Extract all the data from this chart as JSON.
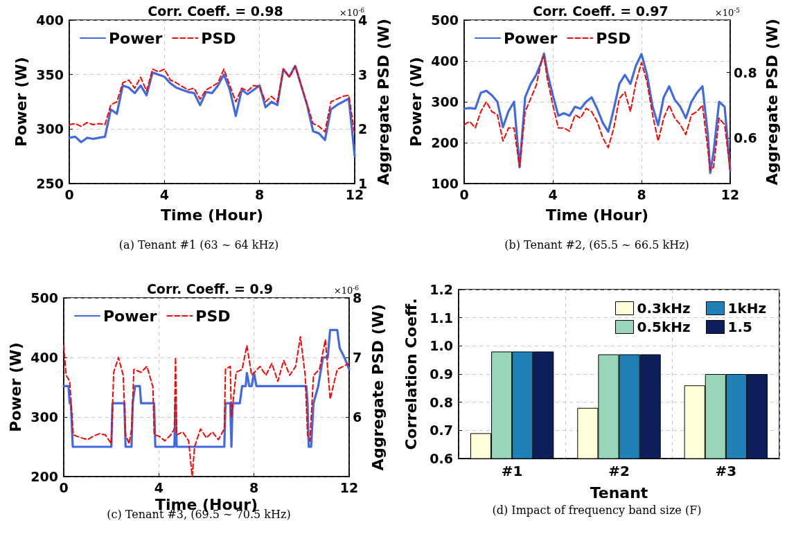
{
  "chart_data": [
    {
      "type": "line",
      "title": "Corr. Coeff. = 0.98",
      "xlabel": "Time (Hour)",
      "ylabel": "Power (W)",
      "y2label": "Aggregate PSD (W)",
      "annotations": [
        "×10$^{-6}$",
        "(a) Tenant #1 (63 ∼ 64 kHz)"
      ],
      "x": [
        0,
        0.25,
        0.5,
        0.75,
        1,
        1.25,
        1.5,
        1.75,
        2,
        2.25,
        2.5,
        2.75,
        3,
        3.25,
        3.5,
        3.75,
        4,
        4.25,
        4.5,
        4.75,
        5,
        5.25,
        5.5,
        5.75,
        6,
        6.25,
        6.5,
        6.75,
        7,
        7.25,
        7.5,
        7.75,
        8,
        8.25,
        8.5,
        8.75,
        9,
        9.25,
        9.5,
        9.75,
        10,
        10.25,
        10.5,
        10.75,
        11,
        11.25,
        11.5,
        11.75,
        12
      ],
      "series": [
        {
          "name": "Power",
          "color": "#4169e1",
          "line_style": "solid",
          "values": [
            292,
            293,
            288,
            292,
            291,
            292,
            293,
            318,
            314,
            340,
            338,
            333,
            340,
            331,
            352,
            350,
            348,
            342,
            338,
            336,
            334,
            333,
            322,
            334,
            333,
            340,
            350,
            336,
            312,
            336,
            332,
            336,
            340,
            320,
            325,
            322,
            355,
            348,
            358,
            340,
            322,
            298,
            296,
            290,
            318,
            322,
            325,
            328,
            275
          ]
        },
        {
          "name": "PSD",
          "color": "#ff0000",
          "line_style": "dashed",
          "axis": "y2",
          "values": [
            2.08,
            2.1,
            2.05,
            2.12,
            2.08,
            2.1,
            2.08,
            2.45,
            2.5,
            2.85,
            2.9,
            2.75,
            2.95,
            2.7,
            3.1,
            3.05,
            3.1,
            2.9,
            2.85,
            2.78,
            2.72,
            2.75,
            2.55,
            2.72,
            2.78,
            2.85,
            3.1,
            2.8,
            2.5,
            2.75,
            2.7,
            2.8,
            2.78,
            2.5,
            2.6,
            2.5,
            3.1,
            2.95,
            3.15,
            2.8,
            2.45,
            2.1,
            2.05,
            1.95,
            2.5,
            2.55,
            2.6,
            2.62,
            1.9
          ]
        }
      ],
      "xlim": [
        0,
        12
      ],
      "xticks": [
        0,
        4,
        8,
        12
      ],
      "ylim": [
        250,
        400
      ],
      "yticks": [
        250,
        300,
        350,
        400
      ],
      "y2lim": [
        1,
        4
      ],
      "y2ticks": [
        1,
        2,
        3,
        4
      ],
      "grid": true,
      "legend": "top left",
      "marker": "none"
    },
    {
      "type": "line",
      "title": "Corr. Coeff. = 0.97",
      "xlabel": "Time (Hour)",
      "ylabel": "Power (W)",
      "y2label": "Aggregate PSD (W)",
      "annotations": [
        "×10$^{-5}$",
        "(b) Tenant #2, (65.5 ∼ 66.5 kHz)"
      ],
      "x": [
        0,
        0.25,
        0.5,
        0.75,
        1,
        1.25,
        1.5,
        1.75,
        2,
        2.25,
        2.5,
        2.75,
        3,
        3.25,
        3.5,
        3.6,
        3.75,
        4,
        4.25,
        4.5,
        4.75,
        5,
        5.25,
        5.5,
        5.75,
        6,
        6.25,
        6.5,
        6.75,
        7,
        7.25,
        7.5,
        7.75,
        8,
        8.25,
        8.5,
        8.75,
        9,
        9.25,
        9.5,
        9.75,
        10,
        10.25,
        10.5,
        10.75,
        11,
        11.1,
        11.25,
        11.5,
        11.75,
        12
      ],
      "series": [
        {
          "name": "Power",
          "color": "#4169e1",
          "line_style": "solid",
          "values": [
            283,
            285,
            283,
            322,
            327,
            316,
            300,
            238,
            277,
            300,
            140,
            311,
            344,
            366,
            400,
            418,
            372,
            316,
            266,
            272,
            266,
            288,
            283,
            300,
            311,
            283,
            249,
            227,
            283,
            344,
            366,
            344,
            389,
            417,
            366,
            288,
            243,
            311,
            338,
            305,
            288,
            260,
            300,
            322,
            338,
            216,
            126,
            177,
            300,
            288,
            132
          ]
        },
        {
          "name": "PSD",
          "color": "#ff0000",
          "line_style": "dashed",
          "axis": "y2",
          "values": [
            0.64,
            0.65,
            0.63,
            0.68,
            0.71,
            0.68,
            0.67,
            0.59,
            0.63,
            0.63,
            0.51,
            0.68,
            0.72,
            0.76,
            0.84,
            0.85,
            0.78,
            0.7,
            0.63,
            0.63,
            0.62,
            0.67,
            0.66,
            0.69,
            0.68,
            0.65,
            0.6,
            0.57,
            0.63,
            0.72,
            0.74,
            0.68,
            0.77,
            0.83,
            0.77,
            0.67,
            0.59,
            0.66,
            0.7,
            0.66,
            0.64,
            0.61,
            0.67,
            0.68,
            0.7,
            0.56,
            0.5,
            0.51,
            0.66,
            0.64,
            0.5
          ]
        }
      ],
      "xlim": [
        0,
        12
      ],
      "xticks": [
        0,
        4,
        8,
        12
      ],
      "ylim": [
        100,
        500
      ],
      "yticks": [
        100,
        200,
        300,
        400,
        500
      ],
      "y2lim": [
        0.46,
        0.96
      ],
      "y2ticks": [
        0.6,
        0.8
      ],
      "grid": true,
      "legend": "top left",
      "marker": "none"
    },
    {
      "type": "line",
      "title": "Corr. Coeff. = 0.9",
      "xlabel": "Time (Hour)",
      "ylabel": "Power (W)",
      "y2label": "Aggregate PSD (W)",
      "annotations": [
        "×10$^{-6}$",
        "(c) Tenant #3, (69.5 ∼ 70.5 kHz)"
      ],
      "series": [
        {
          "name": "Power",
          "color": "#4169e1",
          "line_style": "solid",
          "x": [
            0,
            0.2,
            0.25,
            0.3,
            0.38,
            2,
            2.05,
            2.55,
            2.6,
            2.85,
            2.9,
            3,
            3.2,
            3.25,
            3.8,
            3.85,
            4.65,
            4.7,
            4.75,
            6.75,
            6.8,
            7,
            7.05,
            7.1,
            7.4,
            7.5,
            7.65,
            7.7,
            7.8,
            7.9,
            8,
            8.1,
            10.2,
            10.25,
            10.3,
            10.4,
            10.5,
            10.7,
            10.9,
            11.1,
            11.2,
            11.5,
            11.6,
            11.8,
            12
          ],
          "values": [
            352,
            352,
            323,
            323,
            250,
            250,
            323,
            323,
            250,
            250,
            323,
            352,
            352,
            323,
            323,
            250,
            250,
            323,
            250,
            250,
            323,
            323,
            250,
            323,
            323,
            352,
            352,
            374,
            352,
            352,
            374,
            352,
            352,
            323,
            250,
            250,
            323,
            352,
            400,
            400,
            446,
            446,
            416,
            400,
            380
          ]
        },
        {
          "name": "PSD",
          "color": "#ff0000",
          "line_style": "dashed",
          "axis": "y2",
          "x": [
            0,
            0.1,
            0.25,
            0.4,
            0.75,
            1,
            1.25,
            1.5,
            1.75,
            2,
            2.1,
            2.3,
            2.5,
            2.6,
            2.75,
            2.85,
            2.95,
            3.25,
            3.5,
            3.75,
            3.8,
            4,
            4.25,
            4.5,
            4.65,
            4.7,
            4.75,
            5,
            5.25,
            5.4,
            5.5,
            5.75,
            6,
            6.25,
            6.5,
            6.75,
            6.8,
            7,
            7.05,
            7.25,
            7.5,
            7.7,
            7.9,
            8.25,
            8.5,
            8.75,
            9,
            9.25,
            9.5,
            9.75,
            9.95,
            10.15,
            10.25,
            10.35,
            10.5,
            10.75,
            11,
            11.2,
            11.5,
            11.75,
            12
          ],
          "values": [
            7.2,
            6.7,
            6.6,
            5.7,
            5.65,
            5.62,
            5.68,
            5.72,
            5.7,
            5.55,
            6.75,
            7,
            6.7,
            5.7,
            5.55,
            5.8,
            6.8,
            6.75,
            6.85,
            6.5,
            5.7,
            5.68,
            5.6,
            5.7,
            5.8,
            7,
            5.7,
            5.75,
            5.6,
            5,
            5.5,
            5.8,
            5.65,
            5.75,
            5.62,
            5.8,
            6.8,
            6.85,
            6,
            6.75,
            6.8,
            7.2,
            6.7,
            6.85,
            6.7,
            6.9,
            6.6,
            6.95,
            6.7,
            6.85,
            7.35,
            6.7,
            5.7,
            5.6,
            6.7,
            6.8,
            7.3,
            6.3,
            6.8,
            6.85,
            6.9
          ]
        }
      ],
      "xlim": [
        0,
        12
      ],
      "xticks": [
        0,
        4,
        8,
        12
      ],
      "ylim": [
        200,
        500
      ],
      "yticks": [
        200,
        300,
        400,
        500
      ],
      "y2lim": [
        5,
        8
      ],
      "y2ticks": [
        6,
        7,
        8
      ],
      "grid": true,
      "legend": "top left",
      "marker": "none"
    },
    {
      "type": "bar",
      "xlabel": "Tenant",
      "ylabel": "Correlation Coeff.",
      "annotations": [
        "(d) Impact of frequency band size (F)"
      ],
      "categories": [
        "#1",
        "#2",
        "#3"
      ],
      "series": [
        {
          "name": "0.3kHz",
          "color": "#ffffd9",
          "values": [
            0.69,
            0.78,
            0.86
          ]
        },
        {
          "name": "0.5kHz",
          "color": "#98d6b9",
          "values": [
            0.98,
            0.97,
            0.9
          ]
        },
        {
          "name": "1kHz",
          "color": "#2081b9",
          "values": [
            0.98,
            0.97,
            0.9
          ]
        },
        {
          "name": "1.5",
          "color": "#0c1f5a",
          "values": [
            0.98,
            0.97,
            0.9
          ]
        }
      ],
      "ylim": [
        0.6,
        1.2
      ],
      "yticks": [
        0.6,
        0.7,
        0.8,
        0.9,
        {
          "value": 1,
          "label": "1.0"
        },
        1.1,
        1.2
      ],
      "grid": true,
      "legend": "top right"
    }
  ]
}
